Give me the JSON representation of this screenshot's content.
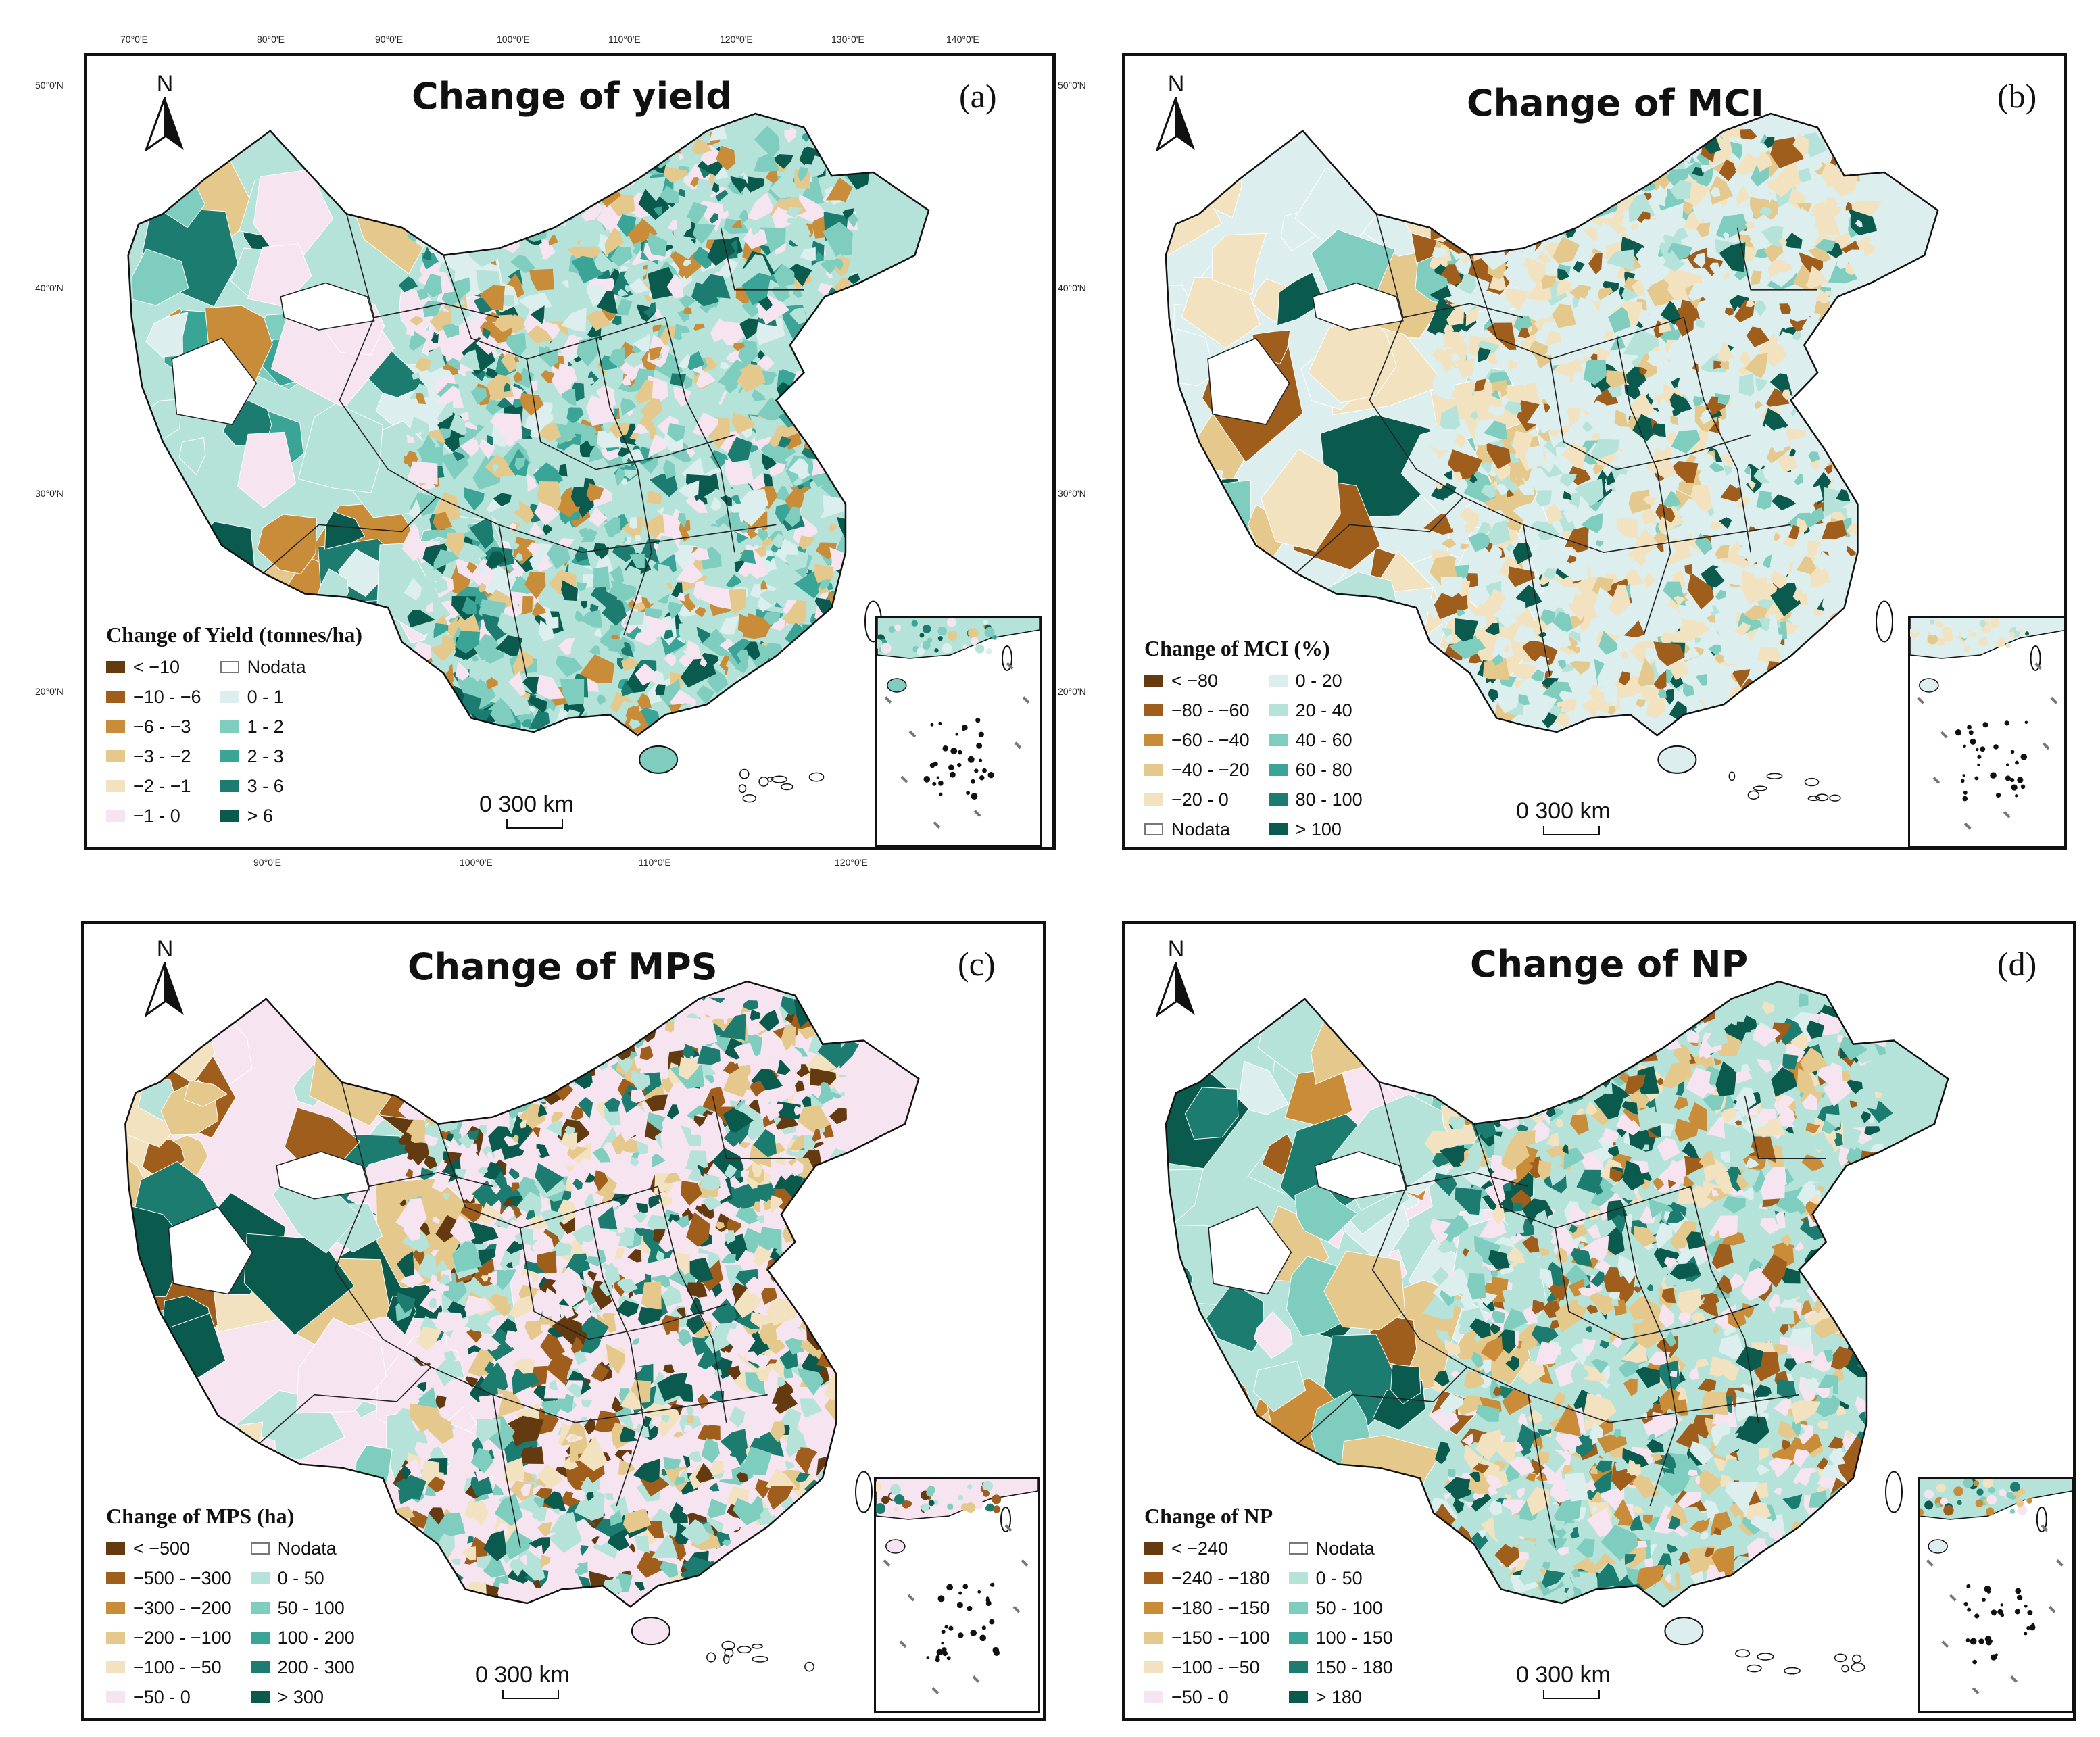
{
  "palette": {
    "teal": [
      "#ddeeee",
      "#b6e3d9",
      "#7fcdbf",
      "#3aa596",
      "#1d7c70",
      "#0b5a4e"
    ],
    "brown": [
      "#f2e2c0",
      "#e5c88b",
      "#c98c38",
      "#a05e1d",
      "#643b10"
    ],
    "pink": "#f6e4f1",
    "white": "#ffffff"
  },
  "coords": {
    "top": [
      "70°0'E",
      "80°0'E",
      "90°0'E",
      "100°0'E",
      "110°0'E",
      "120°0'E",
      "130°0'E",
      "140°0'E"
    ],
    "left": [
      "50°0'N",
      "40°0'N",
      "30°0'N",
      "20°0'N"
    ],
    "right": [
      "50°0'N",
      "40°0'N",
      "30°0'N",
      "20°0'N"
    ],
    "bottom": [
      "90°0'E",
      "100°0'E",
      "110°0'E",
      "120°0'E"
    ]
  },
  "panels": [
    {
      "id": "a",
      "title": "Change of yield",
      "label": "(a)",
      "north": "N",
      "scale": "0   300 km",
      "legend": {
        "title": "Change of Yield (tonnes/ha)",
        "col1": [
          {
            "label": "< −10",
            "color": "#643b10"
          },
          {
            "label": "−10 - −6",
            "color": "#a05e1d"
          },
          {
            "label": "−6 - −3",
            "color": "#c98c38"
          },
          {
            "label": "−3 - −2",
            "color": "#e5c88b"
          },
          {
            "label": "−2 - −1",
            "color": "#f2e2c0"
          },
          {
            "label": "−1 - 0",
            "color": "#f6e4f1"
          }
        ],
        "col2": [
          {
            "label": "Nodata",
            "color": "nodata"
          },
          {
            "label": "0 - 1",
            "color": "#ddeeee"
          },
          {
            "label": "1 - 2",
            "color": "#7fcdbf"
          },
          {
            "label": "2 - 3",
            "color": "#3aa596"
          },
          {
            "label": "3 - 6",
            "color": "#1d7c70"
          },
          {
            "label": "> 6",
            "color": "#0b5a4e"
          }
        ]
      }
    },
    {
      "id": "b",
      "title": "Change of MCI",
      "label": "(b)",
      "north": "N",
      "scale": "0   300 km",
      "legend": {
        "title": "Change of MCI (%)",
        "col1": [
          {
            "label": "< −80",
            "color": "#643b10"
          },
          {
            "label": "−80 - −60",
            "color": "#a05e1d"
          },
          {
            "label": "−60 - −40",
            "color": "#c98c38"
          },
          {
            "label": "−40 - −20",
            "color": "#e5c88b"
          },
          {
            "label": "−20 - 0",
            "color": "#f2e2c0"
          },
          {
            "label": "Nodata",
            "color": "nodata"
          }
        ],
        "col2": [
          {
            "label": "0 - 20",
            "color": "#ddeeee"
          },
          {
            "label": "20 - 40",
            "color": "#b6e3d9"
          },
          {
            "label": "40 - 60",
            "color": "#7fcdbf"
          },
          {
            "label": "60 - 80",
            "color": "#3aa596"
          },
          {
            "label": "80 - 100",
            "color": "#1d7c70"
          },
          {
            "label": "> 100",
            "color": "#0b5a4e"
          }
        ]
      }
    },
    {
      "id": "c",
      "title": "Change of MPS",
      "label": "(c)",
      "north": "N",
      "scale": "0   300 km",
      "legend": {
        "title": "Change of MPS (ha)",
        "col1": [
          {
            "label": "< −500",
            "color": "#643b10"
          },
          {
            "label": "−500 - −300",
            "color": "#a05e1d"
          },
          {
            "label": "−300 - −200",
            "color": "#c98c38"
          },
          {
            "label": "−200 - −100",
            "color": "#e5c88b"
          },
          {
            "label": "−100 - −50",
            "color": "#f2e2c0"
          },
          {
            "label": "−50 - 0",
            "color": "#f6e4f1"
          }
        ],
        "col2": [
          {
            "label": "Nodata",
            "color": "nodata"
          },
          {
            "label": "0 - 50",
            "color": "#b6e3d9"
          },
          {
            "label": "50 - 100",
            "color": "#7fcdbf"
          },
          {
            "label": "100 - 200",
            "color": "#3aa596"
          },
          {
            "label": "200 - 300",
            "color": "#1d7c70"
          },
          {
            "label": "> 300",
            "color": "#0b5a4e"
          }
        ]
      }
    },
    {
      "id": "d",
      "title": "Change of NP",
      "label": "(d)",
      "north": "N",
      "scale": "0   300 km",
      "legend": {
        "title": "Change of NP",
        "col1": [
          {
            "label": "< −240",
            "color": "#643b10"
          },
          {
            "label": "−240 - −180",
            "color": "#a05e1d"
          },
          {
            "label": "−180 - −150",
            "color": "#c98c38"
          },
          {
            "label": "−150 - −100",
            "color": "#e5c88b"
          },
          {
            "label": "−100 - −50",
            "color": "#f2e2c0"
          },
          {
            "label": "−50 - 0",
            "color": "#f6e4f1"
          }
        ],
        "col2": [
          {
            "label": "Nodata",
            "color": "nodata"
          },
          {
            "label": "0 - 50",
            "color": "#b6e3d9"
          },
          {
            "label": "50 - 100",
            "color": "#7fcdbf"
          },
          {
            "label": "100 - 150",
            "color": "#3aa596"
          },
          {
            "label": "150 - 180",
            "color": "#1d7c70"
          },
          {
            "label": "> 180",
            "color": "#0b5a4e"
          }
        ]
      }
    }
  ]
}
